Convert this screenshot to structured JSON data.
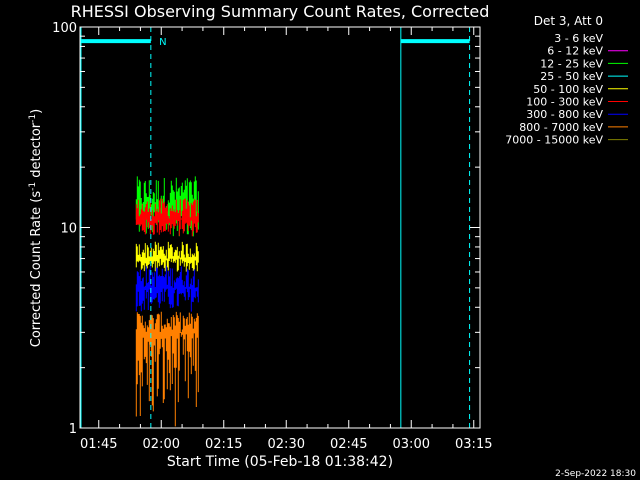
{
  "chart_data": {
    "type": "line",
    "title": "RHESSI Observing Summary Count Rates, Corrected",
    "xlabel": "Start Time (05-Feb-18 01:38:42)",
    "ylabel_main": "Corrected Count Rate (s",
    "ylabel_sup1": "-1",
    "ylabel_mid": " detector",
    "ylabel_sup2": "-1",
    "ylabel_end": ")",
    "y_scale": "log",
    "ylim": [
      1,
      100
    ],
    "y_ticks": [
      {
        "value": 1,
        "label": "1"
      },
      {
        "value": 10,
        "label": "10"
      },
      {
        "value": 100,
        "label": "100"
      }
    ],
    "xlim_minutes": [
      100.5,
      196.5
    ],
    "x_ticks": [
      {
        "minute": 105,
        "label": "01:45"
      },
      {
        "minute": 120,
        "label": "02:00"
      },
      {
        "minute": 135,
        "label": "02:15"
      },
      {
        "minute": 150,
        "label": "02:30"
      },
      {
        "minute": 165,
        "label": "02:45"
      },
      {
        "minute": 180,
        "label": "03:00"
      },
      {
        "minute": 195,
        "label": "03:15"
      }
    ],
    "legend_title": "Det 3, Att 0",
    "legend_position": "right",
    "series": [
      {
        "name": "3 - 6 keV",
        "color": "#000000"
      },
      {
        "name": "6 - 12 keV",
        "color": "#ff00ff"
      },
      {
        "name": "12 - 25 keV",
        "color": "#00ff00"
      },
      {
        "name": "25 - 50 keV",
        "color": "#00ffff"
      },
      {
        "name": "50 - 100 keV",
        "color": "#ffff00"
      },
      {
        "name": "100 - 300 keV",
        "color": "#ff0000"
      },
      {
        "name": "300 - 800 keV",
        "color": "#0000ff"
      },
      {
        "name": "800 - 7000 keV",
        "color": "#ff8000"
      },
      {
        "name": "7000 - 15000 keV",
        "color": "#808000"
      }
    ],
    "data_window_minutes": [
      114,
      129
    ],
    "series_levels": [
      {
        "name": "12 - 25 keV",
        "typical": 12,
        "min": 9,
        "max": 18
      },
      {
        "name": "100 - 300 keV",
        "typical": 11,
        "min": 9,
        "max": 14
      },
      {
        "name": "50 - 100 keV",
        "typical": 7,
        "min": 6,
        "max": 8.5
      },
      {
        "name": "300 - 800 keV",
        "typical": 5,
        "min": 3.8,
        "max": 6.5
      },
      {
        "name": "800 - 7000 keV",
        "typical": 3,
        "min": 1,
        "max": 3.8
      }
    ],
    "annotations": [
      {
        "type": "bar",
        "color": "#00ffff",
        "x_start": 100.5,
        "x_end": 117.5,
        "y": 85
      },
      {
        "type": "bar",
        "color": "#00ffff",
        "x_start": 177.5,
        "x_end": 194,
        "y": 85
      },
      {
        "type": "vline",
        "style": "dashed",
        "color": "#00ffff",
        "x": 117.5
      },
      {
        "type": "vline",
        "style": "solid",
        "color": "#00ffff",
        "x": 177.5
      },
      {
        "type": "vline",
        "style": "dashed",
        "color": "#00ffff",
        "x": 194
      },
      {
        "type": "text",
        "label": "N",
        "x": 119.5,
        "y": 85,
        "color": "#00ffff"
      }
    ],
    "grid": false
  },
  "footer": {
    "date": "2-Sep-2022 18:30"
  }
}
